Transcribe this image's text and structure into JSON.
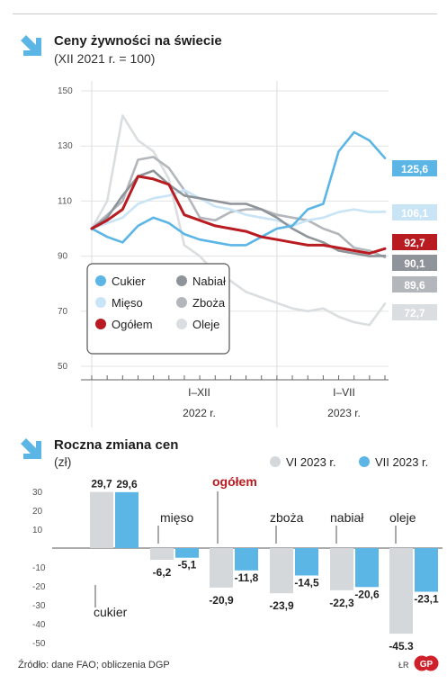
{
  "colors": {
    "cukier": "#5bb6e6",
    "mieso": "#c8e4f5",
    "ogolem": "#b81b20",
    "nabial": "#8f949a",
    "zboza": "#b3b7bb",
    "oleje": "#dbdee0",
    "grid": "#e3e3e3",
    "axis": "#666666",
    "arrow": "#5bb6e6",
    "bar_vi": "#d5d8da",
    "bar_vii": "#5bb6e6"
  },
  "chart_data": [
    {
      "type": "line",
      "title": "Ceny żywności na świecie",
      "subtitle": "(XII 2021 r. = 100)",
      "ylim": [
        50,
        150
      ],
      "yticks": [
        50,
        70,
        90,
        110,
        130,
        150
      ],
      "x_group_labels": [
        {
          "line1": "I–XII",
          "line2": "2022 r."
        },
        {
          "line1": "I–VII",
          "line2": "2023 r."
        }
      ],
      "x": [
        "XII 2021",
        "I 2022",
        "II 2022",
        "III 2022",
        "IV 2022",
        "V 2022",
        "VI 2022",
        "VII 2022",
        "VIII 2022",
        "IX 2022",
        "X 2022",
        "XI 2022",
        "XII 2022",
        "I 2023",
        "II 2023",
        "III 2023",
        "IV 2023",
        "V 2023",
        "VI 2023",
        "VII 2023"
      ],
      "series": [
        {
          "name": "Oleje",
          "key": "oleje",
          "end_label": "72,7",
          "values": [
            100,
            110,
            141,
            132,
            128,
            118,
            94,
            90,
            84,
            81,
            77,
            75,
            73,
            71,
            70,
            71,
            68,
            66,
            65,
            72.7
          ]
        },
        {
          "name": "Zboża",
          "key": "zboza",
          "end_label": "89,6",
          "values": [
            100,
            105,
            110,
            125,
            126,
            122,
            114,
            104,
            103,
            106,
            107,
            107,
            105,
            104,
            103,
            100,
            98,
            93,
            92,
            89.6
          ]
        },
        {
          "name": "Mięso",
          "key": "mieso",
          "end_label": "106,1",
          "values": [
            100,
            102,
            104,
            109,
            111,
            112,
            114,
            111,
            108,
            107,
            105,
            104,
            103,
            101,
            103,
            104,
            106,
            107,
            106,
            106.1
          ]
        },
        {
          "name": "Nabiał",
          "key": "nabial",
          "end_label": "90,1",
          "values": [
            100,
            104,
            112,
            119,
            121,
            116,
            112,
            111,
            110,
            109,
            109,
            107,
            104,
            100,
            97,
            95,
            92,
            91,
            90,
            90.1
          ]
        },
        {
          "name": "Cukier",
          "key": "cukier",
          "end_label": "125,6",
          "values": [
            100,
            97,
            95,
            101,
            104,
            102,
            98,
            96,
            95,
            94,
            94,
            97,
            100,
            101,
            107,
            109,
            128,
            135,
            132,
            125.6
          ]
        },
        {
          "name": "Ogółem",
          "key": "ogolem",
          "end_label": "92,7",
          "values": [
            100,
            103,
            107,
            119,
            118,
            116,
            105,
            103,
            101,
            100,
            99,
            97,
            96,
            95,
            94,
            94,
            93,
            92,
            91,
            92.7
          ]
        }
      ],
      "legend_order": [
        "cukier",
        "nabial",
        "mieso",
        "zboza",
        "ogolem",
        "oleje"
      ]
    },
    {
      "type": "bar",
      "title": "Roczna zmiana cen",
      "ylabel": "(zł)",
      "ylim": [
        -50,
        30
      ],
      "yticks": [
        30,
        20,
        10,
        -10,
        -20,
        -30,
        -40,
        -50
      ],
      "legend": [
        {
          "name": "VI 2023 r.",
          "key": "bar_vi"
        },
        {
          "name": "VII 2023 r.",
          "key": "bar_vii"
        }
      ],
      "categories": [
        "cukier",
        "mięso",
        "ogółem",
        "zboża",
        "nabiał",
        "oleje"
      ],
      "series": [
        {
          "name": "VI 2023 r.",
          "values": [
            29.7,
            -6.2,
            -20.9,
            -23.9,
            -22.3,
            -45.3
          ],
          "labels": [
            "29,7",
            "-6,2",
            "-20,9",
            "-23,9",
            "-22,3",
            "-45,3"
          ]
        },
        {
          "name": "VII 2023 r.",
          "values": [
            29.6,
            -5.1,
            -11.8,
            -14.5,
            -20.6,
            -23.1
          ],
          "labels": [
            "29,6",
            "-5,1",
            "-11,8",
            "-14,5",
            "-20,6",
            "-23,1"
          ]
        }
      ]
    }
  ],
  "footer": {
    "source": "Źródło: dane FAO; obliczenia DGP",
    "author": "ŁR",
    "logo_text": "GP"
  }
}
